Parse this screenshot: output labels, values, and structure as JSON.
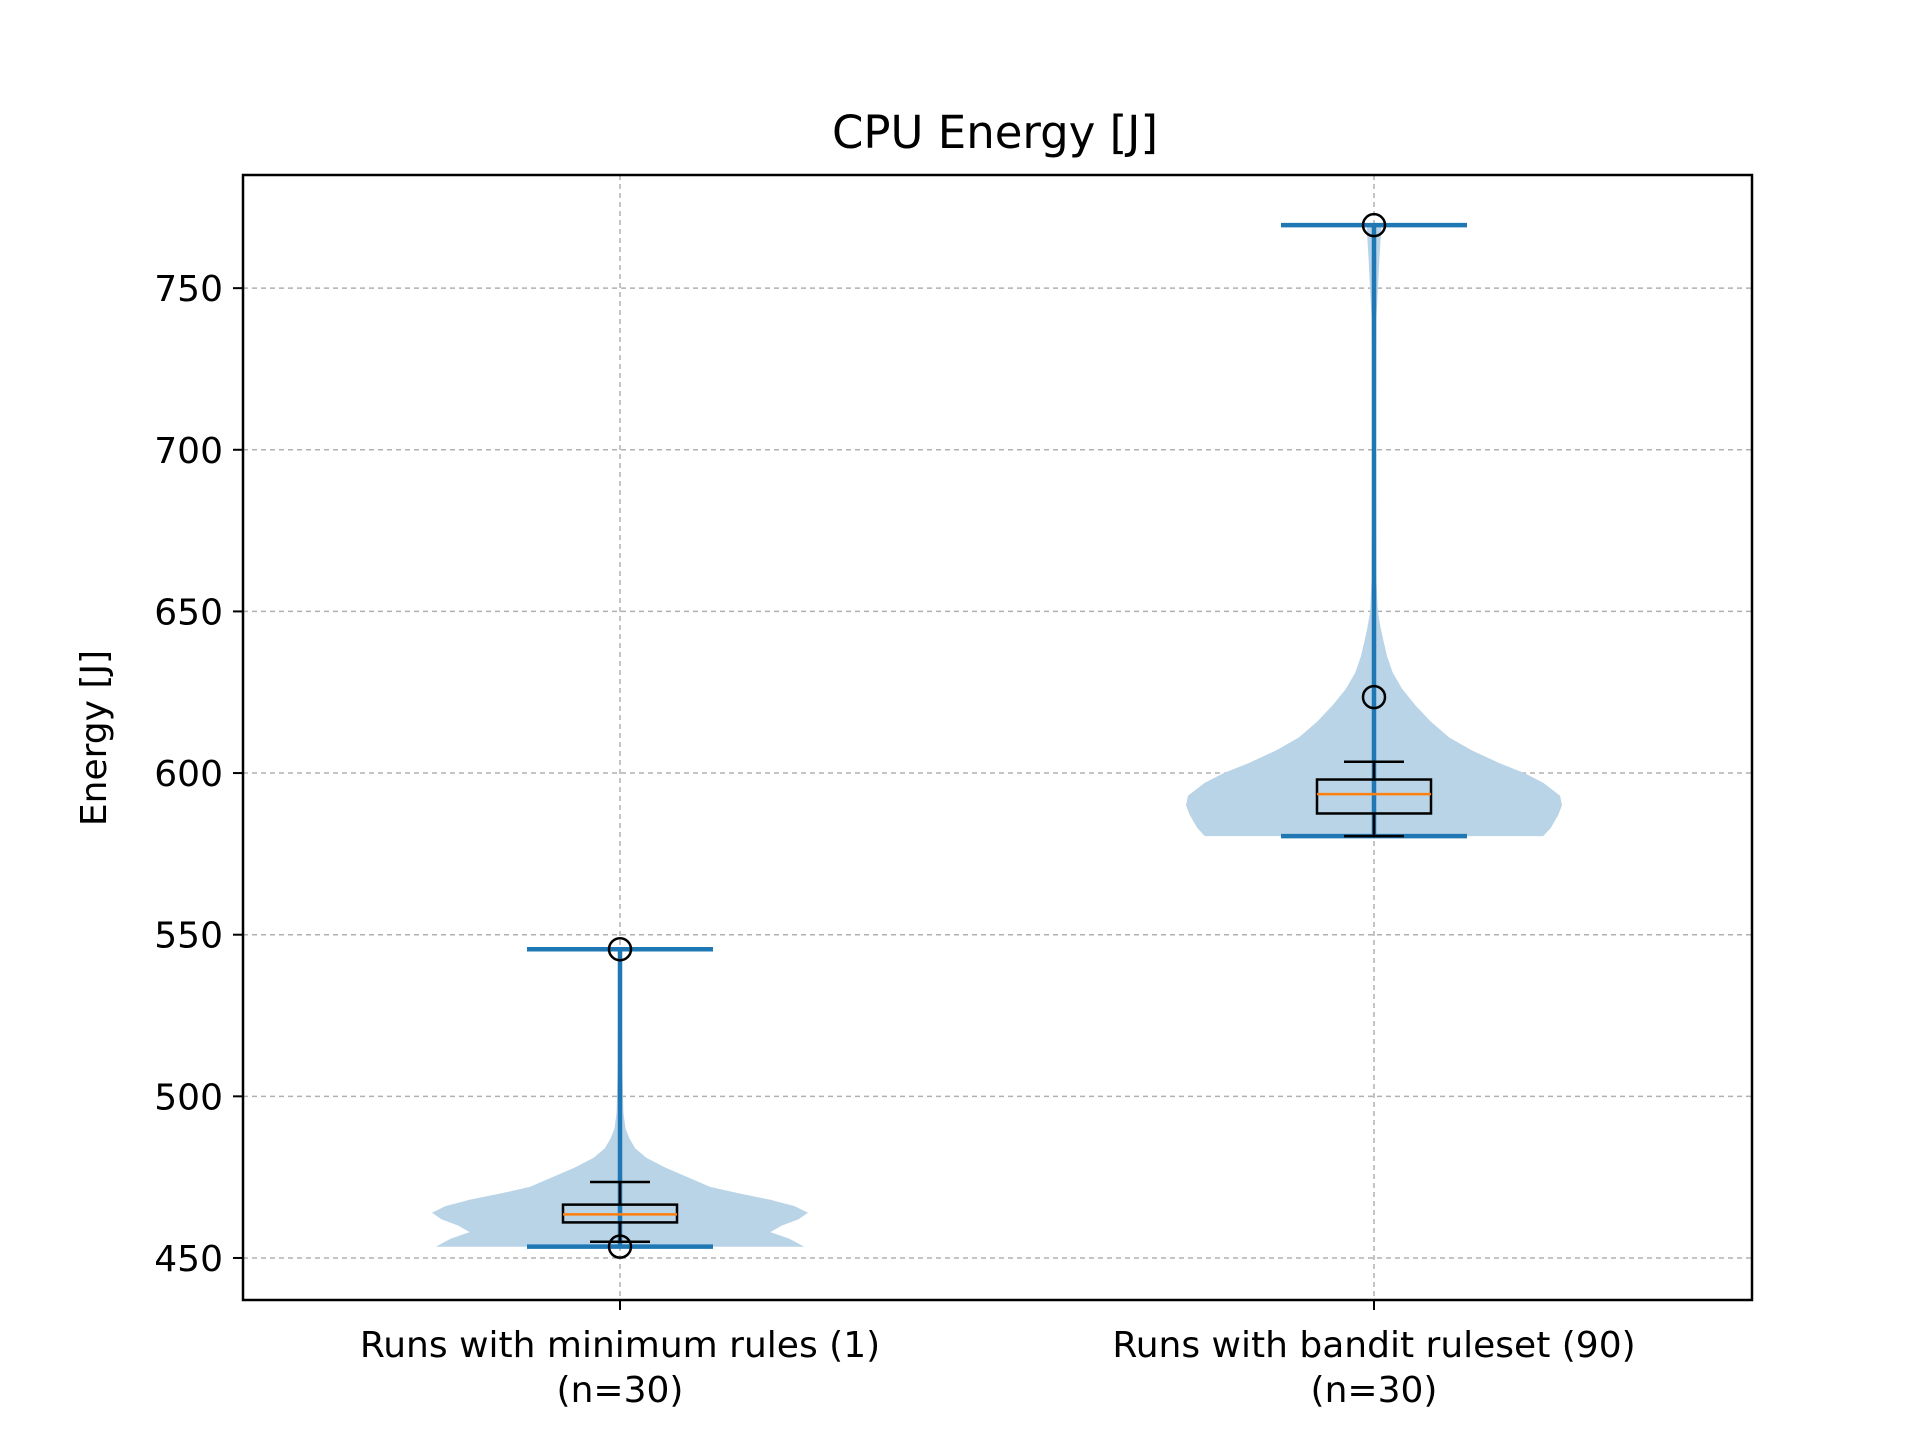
{
  "chart_data": {
    "type": "violin",
    "title": "CPU Energy [J]",
    "ylabel": "Energy [J]",
    "xlabel": "",
    "ylim": [
      437,
      785
    ],
    "yticks": [
      450,
      500,
      550,
      600,
      650,
      700,
      750
    ],
    "grid": true,
    "categories": [
      [
        "Runs with minimum rules (1)",
        "(n=30)"
      ],
      [
        "Runs with bandit ruleset (90)",
        "(n=30)"
      ]
    ],
    "series": [
      {
        "min": 453.5,
        "max": 545.5,
        "box": {
          "q1": 461,
          "median": 463.5,
          "q3": 466.5,
          "whisker_low": 455,
          "whisker_high": 473.5
        },
        "outliers": [
          453.5,
          545.5
        ],
        "density": [
          [
            453.5,
            0.98
          ],
          [
            456,
            0.9
          ],
          [
            458,
            0.8
          ],
          [
            460,
            0.86
          ],
          [
            462,
            0.95
          ],
          [
            464,
            1.0
          ],
          [
            466,
            0.93
          ],
          [
            468,
            0.8
          ],
          [
            470,
            0.63
          ],
          [
            472,
            0.48
          ],
          [
            475,
            0.36
          ],
          [
            478,
            0.24
          ],
          [
            481,
            0.14
          ],
          [
            484,
            0.08
          ],
          [
            487,
            0.05
          ],
          [
            490,
            0.03
          ],
          [
            495,
            0.018
          ],
          [
            510,
            0.012
          ],
          [
            545.5,
            0.008
          ]
        ]
      },
      {
        "min": 580.5,
        "max": 769.5,
        "box": {
          "q1": 587.5,
          "median": 593.5,
          "q3": 598,
          "whisker_low": 580.5,
          "whisker_high": 603.5
        },
        "outliers": [
          623.5,
          769.5
        ],
        "density": [
          [
            580.5,
            0.9
          ],
          [
            583,
            0.94
          ],
          [
            587,
            0.98
          ],
          [
            590,
            1.0
          ],
          [
            593,
            0.99
          ],
          [
            597,
            0.9
          ],
          [
            600,
            0.8
          ],
          [
            603,
            0.67
          ],
          [
            607,
            0.52
          ],
          [
            611,
            0.4
          ],
          [
            616,
            0.3
          ],
          [
            621,
            0.22
          ],
          [
            626,
            0.15
          ],
          [
            631,
            0.1
          ],
          [
            636,
            0.07
          ],
          [
            641,
            0.05
          ],
          [
            645,
            0.035
          ],
          [
            650,
            0.02
          ],
          [
            660,
            0.013
          ],
          [
            700,
            0.01
          ],
          [
            740,
            0.012
          ],
          [
            760,
            0.03
          ],
          [
            769.5,
            0.04
          ]
        ]
      }
    ]
  },
  "colors": {
    "violin_fill": "#b9d4e7",
    "violin_lines": "#1f77b4",
    "box": "#000000",
    "median": "#ff7f0e",
    "grid": "#b0b0b0"
  }
}
